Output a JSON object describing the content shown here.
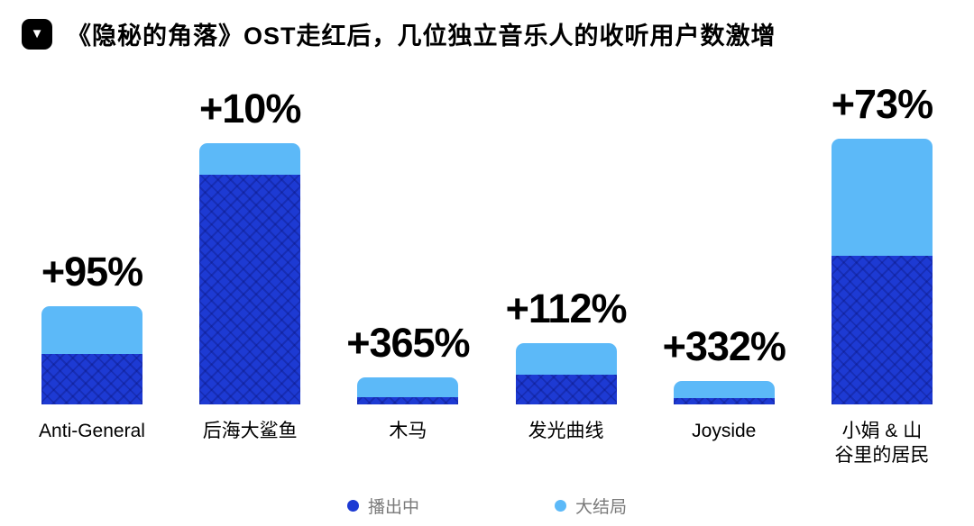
{
  "header": {
    "title": "《隐秘的角落》OST走红后，几位独立音乐人的收听用户数激增",
    "logo_icon": "black-rounded-square-down-triangle"
  },
  "chart_data": {
    "type": "bar",
    "stacked": true,
    "title": "《隐秘的角落》OST走红后，几位独立音乐人的收听用户数激增",
    "categories": [
      "Anti-General",
      "后海大鲨鱼",
      "木马",
      "发光曲线",
      "Joyside",
      "小娟 & 山\n谷里的居民"
    ],
    "series": [
      {
        "name": "播出中",
        "color": "#1d3ad3",
        "values": [
          56,
          255,
          8,
          33,
          7,
          165
        ]
      },
      {
        "name": "大结局",
        "color": "#5cb9f8",
        "values": [
          53,
          35,
          22,
          35,
          19,
          130
        ]
      }
    ],
    "value_unit": "estimated relative bar-segment heights (no numeric axis shown in image)",
    "annotations": [
      "+95%",
      "+10%",
      "+365%",
      "+112%",
      "+332%",
      "+73%"
    ],
    "legend": {
      "position": "bottom",
      "items": [
        "播出中",
        "大结局"
      ]
    },
    "grid": false,
    "axes_visible": false
  },
  "colors": {
    "airing_dark_blue": "#1d3ad3",
    "finale_light_blue": "#5cb9f8",
    "text": "#000000",
    "legend_text": "#7a7a7a",
    "background": "#ffffff"
  }
}
